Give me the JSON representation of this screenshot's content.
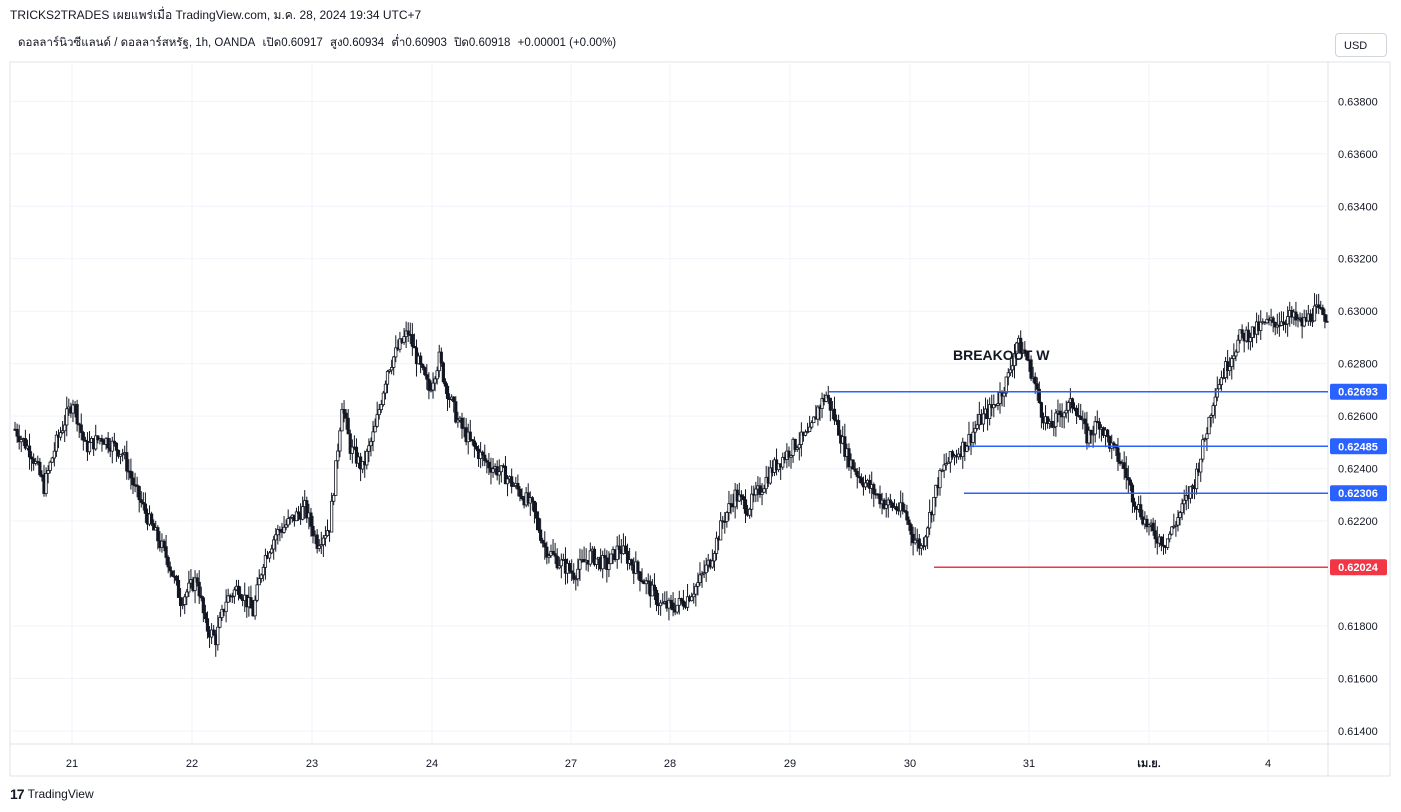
{
  "header": {
    "title": "TRICKS2TRADES เผยแพร่เมื่อ TradingView.com, ม.ค. 28, 2024 19:34 UTC+7"
  },
  "symbol_info": {
    "name": "ดอลลาร์นิวซีแลนด์ / ดอลลาร์สหรัฐ, 1h, OANDA",
    "open": "เปิด0.60917",
    "high": "สูง0.60934",
    "low": "ต่ำ0.60903",
    "close": "ปิด0.60918",
    "change": "+0.00001 (+0.00%)"
  },
  "currency_button": "USD",
  "footer": {
    "brand": "TradingView",
    "logo": "17"
  },
  "colors": {
    "candle": "#131722",
    "blue_line": "#2962ff",
    "red_line": "#f23645",
    "grid": "#f0f3fa"
  },
  "chart_data": {
    "type": "candlestick",
    "y_ticks": [
      "0.63800",
      "0.63600",
      "0.63400",
      "0.63200",
      "0.63000",
      "0.62800",
      "0.62600",
      "0.62400",
      "0.62200",
      "0.61800",
      "0.61600",
      "0.61400"
    ],
    "ylim": [
      0.6135,
      0.6395
    ],
    "x_ticks": [
      "21",
      "22",
      "23",
      "24",
      "27",
      "28",
      "29",
      "30",
      "31",
      "เม.ย.",
      "4"
    ],
    "annotation": "BREAKOUT W",
    "levels": [
      {
        "value": 0.62693,
        "label": "0.62693",
        "color": "#2962ff"
      },
      {
        "value": 0.62485,
        "label": "0.62485",
        "color": "#2962ff"
      },
      {
        "value": 0.62306,
        "label": "0.62306",
        "color": "#2962ff"
      },
      {
        "value": 0.62024,
        "label": "0.62024",
        "color": "#f23645"
      }
    ],
    "close_path": [
      [
        0,
        0.6255
      ],
      [
        8,
        0.6246
      ],
      [
        14,
        0.6233
      ],
      [
        20,
        0.625
      ],
      [
        28,
        0.6266
      ],
      [
        34,
        0.6248
      ],
      [
        42,
        0.6252
      ],
      [
        52,
        0.6246
      ],
      [
        58,
        0.6232
      ],
      [
        66,
        0.6218
      ],
      [
        74,
        0.6205
      ],
      [
        80,
        0.619
      ],
      [
        88,
        0.6198
      ],
      [
        92,
        0.618
      ],
      [
        97,
        0.6175
      ],
      [
        102,
        0.619
      ],
      [
        108,
        0.6195
      ],
      [
        115,
        0.6185
      ],
      [
        120,
        0.6205
      ],
      [
        126,
        0.6215
      ],
      [
        133,
        0.622
      ],
      [
        140,
        0.6225
      ],
      [
        146,
        0.6212
      ],
      [
        152,
        0.6218
      ],
      [
        155,
        0.624
      ],
      [
        158,
        0.6265
      ],
      [
        162,
        0.6248
      ],
      [
        168,
        0.624
      ],
      [
        174,
        0.6255
      ],
      [
        180,
        0.6278
      ],
      [
        186,
        0.6287
      ],
      [
        190,
        0.6292
      ],
      [
        195,
        0.628
      ],
      [
        200,
        0.627
      ],
      [
        205,
        0.6282
      ],
      [
        208,
        0.6272
      ],
      [
        214,
        0.6258
      ],
      [
        220,
        0.625
      ],
      [
        228,
        0.6242
      ],
      [
        236,
        0.6238
      ],
      [
        244,
        0.6231
      ],
      [
        250,
        0.6225
      ],
      [
        256,
        0.621
      ],
      [
        262,
        0.6205
      ],
      [
        270,
        0.62
      ],
      [
        278,
        0.6207
      ],
      [
        286,
        0.6203
      ],
      [
        292,
        0.621
      ],
      [
        300,
        0.6202
      ],
      [
        306,
        0.6195
      ],
      [
        312,
        0.6188
      ],
      [
        318,
        0.6187
      ],
      [
        324,
        0.619
      ],
      [
        330,
        0.6196
      ],
      [
        336,
        0.6205
      ],
      [
        342,
        0.622
      ],
      [
        348,
        0.623
      ],
      [
        354,
        0.6225
      ],
      [
        360,
        0.6232
      ],
      [
        366,
        0.624
      ],
      [
        372,
        0.6245
      ],
      [
        378,
        0.625
      ],
      [
        384,
        0.6253
      ],
      [
        388,
        0.6263
      ],
      [
        392,
        0.6268
      ],
      [
        398,
        0.6255
      ],
      [
        402,
        0.6245
      ],
      [
        408,
        0.6237
      ],
      [
        414,
        0.6232
      ],
      [
        420,
        0.6227
      ],
      [
        426,
        0.6225
      ],
      [
        430,
        0.6223
      ],
      [
        434,
        0.6214
      ],
      [
        438,
        0.621
      ],
      [
        442,
        0.6222
      ],
      [
        446,
        0.6235
      ],
      [
        450,
        0.6242
      ],
      [
        454,
        0.6245
      ],
      [
        460,
        0.625
      ],
      [
        466,
        0.6258
      ],
      [
        472,
        0.6263
      ],
      [
        476,
        0.6268
      ],
      [
        480,
        0.6275
      ],
      [
        484,
        0.6288
      ],
      [
        488,
        0.6284
      ],
      [
        492,
        0.6275
      ],
      [
        496,
        0.6262
      ],
      [
        500,
        0.6255
      ],
      [
        506,
        0.6262
      ],
      [
        512,
        0.6265
      ],
      [
        518,
        0.6252
      ],
      [
        524,
        0.6258
      ],
      [
        530,
        0.6248
      ],
      [
        536,
        0.624
      ],
      [
        540,
        0.623
      ],
      [
        546,
        0.622
      ],
      [
        550,
        0.6215
      ],
      [
        556,
        0.6212
      ],
      [
        560,
        0.6218
      ],
      [
        566,
        0.6228
      ],
      [
        570,
        0.6235
      ],
      [
        576,
        0.6255
      ],
      [
        580,
        0.627
      ],
      [
        586,
        0.628
      ],
      [
        592,
        0.629
      ],
      [
        598,
        0.6292
      ],
      [
        604,
        0.6295
      ],
      [
        610,
        0.6296
      ],
      [
        616,
        0.6298
      ],
      [
        622,
        0.6295
      ],
      [
        628,
        0.63
      ],
      [
        634,
        0.6298
      ]
    ]
  }
}
